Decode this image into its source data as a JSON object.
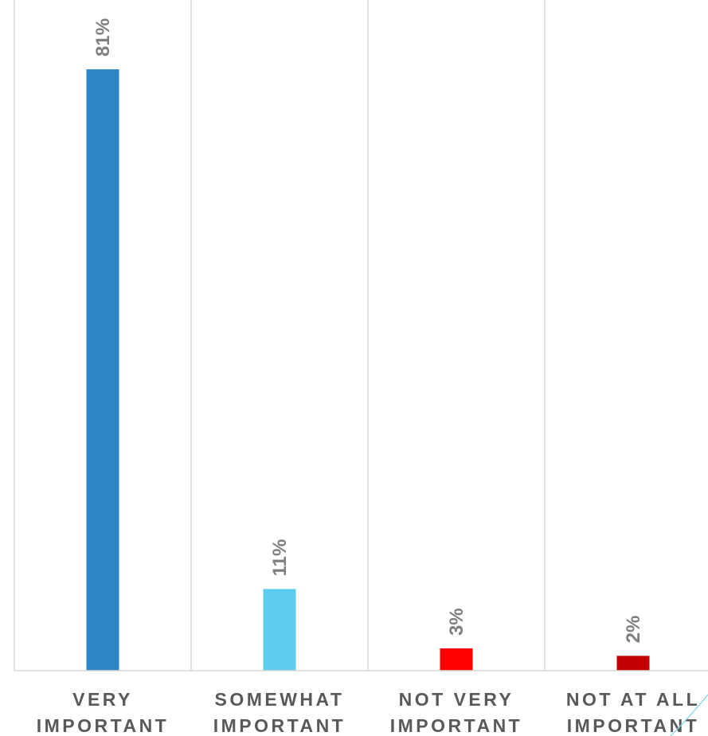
{
  "chart_data": {
    "type": "bar",
    "categories": [
      [
        "VERY",
        "IMPORTANT"
      ],
      [
        "SOMEWHAT",
        "IMPORTANT"
      ],
      [
        "NOT VERY",
        "IMPORTANT"
      ],
      [
        "NOT AT ALL",
        "IMPORTANT"
      ]
    ],
    "values": [
      81,
      11,
      3,
      2
    ],
    "data_labels": [
      "81%",
      "11%",
      "3%",
      "2%"
    ],
    "colors": [
      "#2e86c8",
      "#5ccdf0",
      "#ff0000",
      "#c00000"
    ],
    "ylim": [
      0,
      90
    ],
    "grid": "vertical-separators",
    "legend": "none"
  }
}
